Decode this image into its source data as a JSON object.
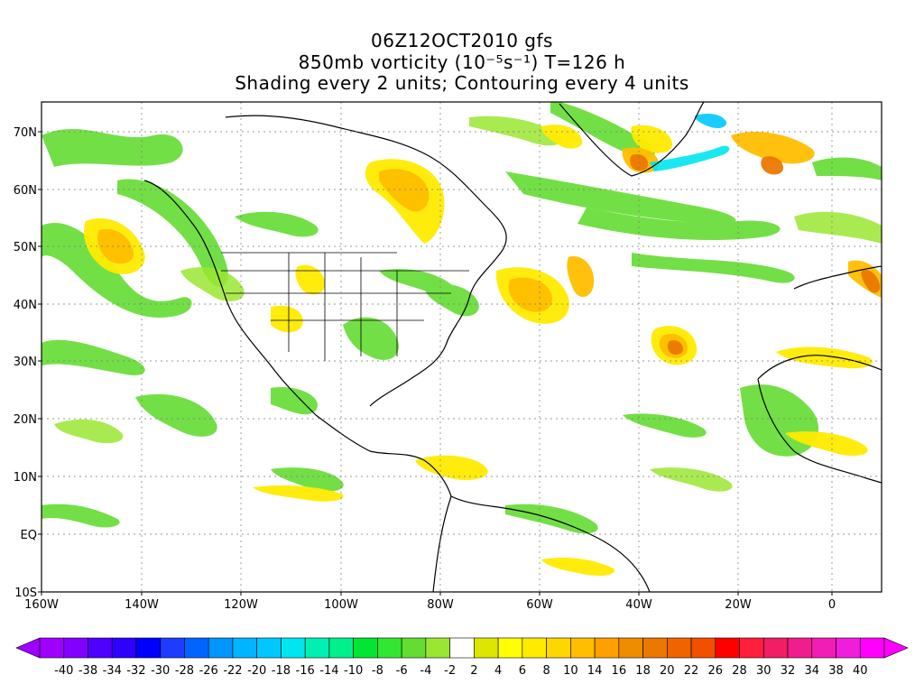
{
  "title": {
    "line1": "06Z12OCT2010 gfs",
    "line2": "850mb vorticity (10⁻⁵s⁻¹) T=126 h",
    "line3": "Shading every 2 units; Contouring every 4 units"
  },
  "map": {
    "lat_labels": [
      "70N",
      "60N",
      "50N",
      "40N",
      "30N",
      "20N",
      "10N",
      "EQ",
      "10S"
    ],
    "lon_labels": [
      "160W",
      "140W",
      "120W",
      "100W",
      "80W",
      "60W",
      "40W",
      "20W",
      "0"
    ]
  },
  "colorbar": {
    "negative_labels": [
      "-40",
      "-38",
      "-34",
      "-32",
      "-30",
      "-28",
      "-26",
      "-22",
      "-20",
      "-18",
      "-16",
      "-14",
      "-10",
      "-8",
      "-6",
      "-4",
      "-2"
    ],
    "positive_labels": [
      "2",
      "4",
      "6",
      "8",
      "10",
      "14",
      "16",
      "18",
      "20",
      "22",
      "26",
      "28",
      "30",
      "32",
      "34",
      "38",
      "40"
    ],
    "negative_colors": [
      "#a000ff",
      "#8200ff",
      "#5000ff",
      "#2d00ff",
      "#0000ff",
      "#1e3cff",
      "#0064ff",
      "#0096ff",
      "#00b4ff",
      "#00c8ff",
      "#00e6f0",
      "#00f0b4",
      "#00f08c",
      "#00e632",
      "#32e632",
      "#64dc32",
      "#9be632"
    ],
    "zero_color": "#ffffff",
    "positive_colors": [
      "#dce600",
      "#ffff00",
      "#ffeb00",
      "#ffd700",
      "#ffbe00",
      "#ffa000",
      "#f08c00",
      "#eb7800",
      "#f06400",
      "#f05000",
      "#ff0000",
      "#ff1e3c",
      "#f01e64",
      "#f01e8c",
      "#f01eb4",
      "#f01edc",
      "#ff00ff"
    ]
  }
}
